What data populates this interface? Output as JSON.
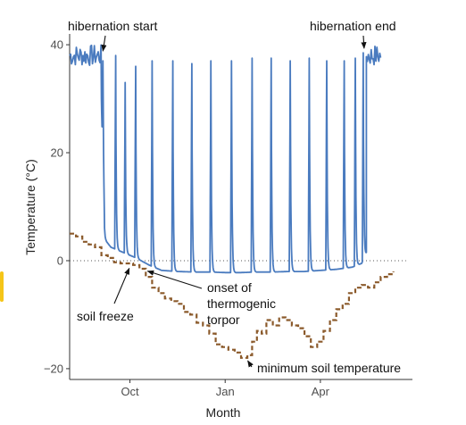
{
  "chart_data": {
    "type": "line",
    "xlabel": "Month",
    "ylabel": "Temperature (°C)",
    "ylim": [
      -22,
      42
    ],
    "xlim": [
      -0.9,
      9.9
    ],
    "y_ticks": [
      {
        "value": -20,
        "label": "−20"
      },
      {
        "value": 0,
        "label": "0"
      },
      {
        "value": 20,
        "label": "20"
      },
      {
        "value": 40,
        "label": "40"
      }
    ],
    "x_ticks": [
      {
        "value": 1,
        "label": "Oct"
      },
      {
        "value": 4,
        "label": "Jan"
      },
      {
        "value": 7,
        "label": "Apr"
      }
    ],
    "reference_line": {
      "y": 0,
      "style": "dotted"
    },
    "grid": false,
    "series": [
      {
        "id": "body",
        "color": "#4a7bbf",
        "style": "solid",
        "baseline": [
          [
            -0.4,
            39.5
          ],
          [
            -0.2,
            38.5
          ],
          [
            0.0,
            37.5
          ],
          [
            0.1,
            30
          ],
          [
            0.2,
            4
          ],
          [
            0.4,
            2.5
          ],
          [
            0.8,
            1.5
          ],
          [
            1.2,
            0.5
          ],
          [
            1.6,
            -0.8
          ],
          [
            2.0,
            -1.8
          ],
          [
            2.5,
            -2.0
          ],
          [
            3.0,
            -2.1
          ],
          [
            3.5,
            -2.1
          ],
          [
            4.0,
            -2.2
          ],
          [
            4.5,
            -2.2
          ],
          [
            5.0,
            -2.1
          ],
          [
            5.5,
            -2.1
          ],
          [
            6.0,
            -2.0
          ],
          [
            6.5,
            -2.0
          ],
          [
            7.0,
            -1.8
          ],
          [
            7.5,
            -1.6
          ],
          [
            8.0,
            -1.2
          ],
          [
            8.3,
            -0.5
          ],
          [
            8.5,
            2
          ]
        ],
        "noise": {
          "from": -0.9,
          "to": 0.1,
          "min": 36,
          "max": 40
        },
        "arousals": [
          {
            "x": 0.15,
            "peak": 37
          },
          {
            "x": 0.55,
            "peak": 38
          },
          {
            "x": 0.85,
            "peak": 33
          },
          {
            "x": 1.18,
            "peak": 36
          },
          {
            "x": 1.7,
            "peak": 37
          },
          {
            "x": 2.35,
            "peak": 37
          },
          {
            "x": 2.95,
            "peak": 36.5
          },
          {
            "x": 3.55,
            "peak": 37
          },
          {
            "x": 4.2,
            "peak": 37
          },
          {
            "x": 4.85,
            "peak": 37.5
          },
          {
            "x": 5.45,
            "peak": 37.5
          },
          {
            "x": 6.05,
            "peak": 37
          },
          {
            "x": 6.65,
            "peak": 37.5
          },
          {
            "x": 7.2,
            "peak": 37
          },
          {
            "x": 7.75,
            "peak": 37
          },
          {
            "x": 8.1,
            "peak": 37.5
          },
          {
            "x": 8.35,
            "peak": 38.5
          }
        ],
        "end_noise": {
          "from": 8.45,
          "to": 8.9,
          "min": 36,
          "max": 40
        }
      },
      {
        "id": "soil",
        "color": "#8b5a2b",
        "style": "dashed",
        "points": [
          [
            -0.9,
            5
          ],
          [
            -0.7,
            4.5
          ],
          [
            -0.5,
            3.5
          ],
          [
            -0.3,
            3
          ],
          [
            -0.1,
            2.5
          ],
          [
            0.1,
            1
          ],
          [
            0.3,
            0.5
          ],
          [
            0.5,
            -0.3
          ],
          [
            0.7,
            -0.5
          ],
          [
            0.9,
            -0.5
          ],
          [
            1.1,
            -0.8
          ],
          [
            1.3,
            -1.5
          ],
          [
            1.5,
            -3
          ],
          [
            1.7,
            -5
          ],
          [
            1.9,
            -6
          ],
          [
            2.1,
            -7
          ],
          [
            2.3,
            -7.5
          ],
          [
            2.5,
            -8
          ],
          [
            2.7,
            -9.5
          ],
          [
            2.9,
            -10
          ],
          [
            3.1,
            -11.5
          ],
          [
            3.3,
            -12
          ],
          [
            3.5,
            -13.5
          ],
          [
            3.7,
            -15.5
          ],
          [
            3.9,
            -16
          ],
          [
            4.1,
            -16.5
          ],
          [
            4.3,
            -17
          ],
          [
            4.5,
            -18
          ],
          [
            4.7,
            -17.5
          ],
          [
            4.85,
            -15
          ],
          [
            5.0,
            -13
          ],
          [
            5.15,
            -13.5
          ],
          [
            5.3,
            -11
          ],
          [
            5.5,
            -12
          ],
          [
            5.7,
            -10.5
          ],
          [
            5.9,
            -11
          ],
          [
            6.1,
            -12
          ],
          [
            6.3,
            -12.5
          ],
          [
            6.5,
            -14
          ],
          [
            6.7,
            -16
          ],
          [
            6.9,
            -15
          ],
          [
            7.1,
            -13
          ],
          [
            7.3,
            -11
          ],
          [
            7.5,
            -9
          ],
          [
            7.7,
            -8
          ],
          [
            7.9,
            -6
          ],
          [
            8.1,
            -5
          ],
          [
            8.3,
            -4.5
          ],
          [
            8.5,
            -5
          ],
          [
            8.7,
            -4
          ],
          [
            8.9,
            -3
          ],
          [
            9.1,
            -2.5
          ],
          [
            9.3,
            -2
          ]
        ]
      }
    ],
    "annotations": [
      {
        "id": "hib-start",
        "text": "hibernation start",
        "x": 0.15,
        "y": 38.5
      },
      {
        "id": "hib-end",
        "text": "hibernation end",
        "x": 8.35,
        "y": 39
      },
      {
        "id": "soil-freeze",
        "text": "soil freeze",
        "x": 0.95,
        "y": -0.9
      },
      {
        "id": "onset",
        "text": "onset of thermogenic torpor",
        "lines": [
          "onset of",
          "thermogenic",
          "torpor"
        ],
        "x": 1.5,
        "y": -1.6
      },
      {
        "id": "min-soil",
        "text": "minimum soil temperature",
        "x": 4.6,
        "y": -18.2
      }
    ]
  }
}
